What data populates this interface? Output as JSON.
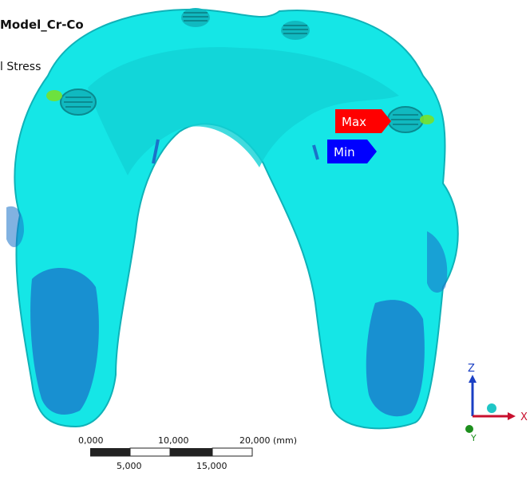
{
  "header": {
    "model_title": "Model_Cr-Co",
    "result_type": "l Stress"
  },
  "probes": {
    "max_label": "Max",
    "min_label": "Min",
    "max_color": "#ff0000",
    "min_color": "#0000ff"
  },
  "model": {
    "surface_color": "#15e6e6",
    "shadow_color": "#0fb2b8",
    "low_region_color": "#1a73c9",
    "hot_spot_color": "#77e02b"
  },
  "scale_bar": {
    "top_labels": [
      "0,000",
      "10,000",
      "20,000 (mm)"
    ],
    "bottom_labels": [
      "5,000",
      "15,000"
    ]
  },
  "triad": {
    "x_label": "X",
    "y_label": "Y",
    "z_label": "Z",
    "x_color": "#c8102e",
    "y_color": "#1d8f1d",
    "z_color": "#1a3fc4"
  }
}
